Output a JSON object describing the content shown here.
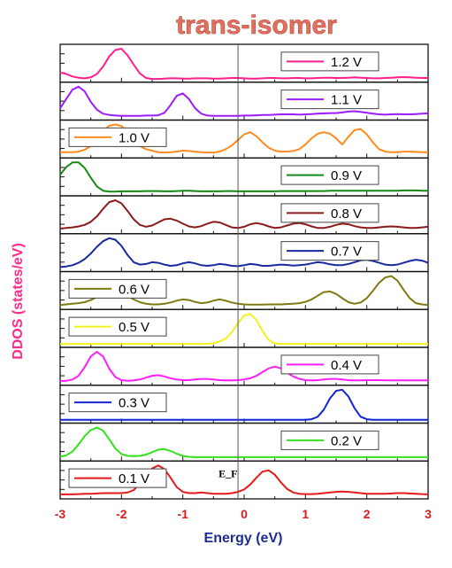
{
  "chart_data": {
    "type": "line",
    "title": "trans-isomer",
    "xlabel": "Energy (eV)",
    "ylabel": "DDOS (states/eV)",
    "xlim": [
      -3,
      3
    ],
    "xticks": [
      "-3",
      "-2",
      "-1",
      "0",
      "1",
      "2",
      "3"
    ],
    "fermi_level_label": "E_F",
    "fermi_level_x": -0.1,
    "x": [
      -3.0,
      -2.9,
      -2.8,
      -2.7,
      -2.6,
      -2.5,
      -2.4,
      -2.3,
      -2.2,
      -2.1,
      -2.0,
      -1.9,
      -1.8,
      -1.7,
      -1.6,
      -1.5,
      -1.4,
      -1.3,
      -1.2,
      -1.1,
      -1.0,
      -0.9,
      -0.8,
      -0.7,
      -0.6,
      -0.5,
      -0.4,
      -0.3,
      -0.2,
      -0.1,
      0.0,
      0.1,
      0.2,
      0.3,
      0.4,
      0.5,
      0.6,
      0.7,
      0.8,
      0.9,
      1.0,
      1.1,
      1.2,
      1.3,
      1.4,
      1.5,
      1.6,
      1.7,
      1.8,
      1.9,
      2.0,
      2.1,
      2.2,
      2.3,
      2.4,
      2.5,
      2.6,
      2.7,
      2.8,
      2.9,
      3.0
    ],
    "panels": [
      {
        "name": "1.2 V",
        "color": "#ff1f8c",
        "legend_pos": "right",
        "values": [
          0.23,
          0.18,
          0.1,
          0.06,
          0.04,
          0.07,
          0.18,
          0.42,
          0.75,
          0.96,
          1.0,
          0.78,
          0.48,
          0.2,
          0.05,
          0.02,
          0.02,
          0.03,
          0.04,
          0.04,
          0.03,
          0.03,
          0.04,
          0.04,
          0.04,
          0.03,
          0.03,
          0.04,
          0.05,
          0.05,
          0.04,
          0.03,
          0.03,
          0.04,
          0.05,
          0.05,
          0.04,
          0.04,
          0.05,
          0.05,
          0.04,
          0.04,
          0.05,
          0.06,
          0.06,
          0.05,
          0.05,
          0.06,
          0.07,
          0.06,
          0.05,
          0.04,
          0.04,
          0.05,
          0.06,
          0.07,
          0.08,
          0.07,
          0.06,
          0.05,
          0.05
        ]
      },
      {
        "name": "1.1 V",
        "color": "#9b1cff",
        "legend_pos": "right",
        "values": [
          0.3,
          0.6,
          0.9,
          1.0,
          0.85,
          0.5,
          0.25,
          0.12,
          0.08,
          0.06,
          0.05,
          0.05,
          0.05,
          0.05,
          0.06,
          0.06,
          0.07,
          0.15,
          0.4,
          0.7,
          0.78,
          0.6,
          0.3,
          0.12,
          0.06,
          0.05,
          0.05,
          0.05,
          0.05,
          0.05,
          0.06,
          0.06,
          0.07,
          0.08,
          0.08,
          0.09,
          0.1,
          0.1,
          0.1,
          0.09,
          0.1,
          0.11,
          0.12,
          0.13,
          0.14,
          0.14,
          0.16,
          0.19,
          0.2,
          0.18,
          0.15,
          0.12,
          0.1,
          0.09,
          0.1,
          0.11,
          0.1,
          0.1,
          0.11,
          0.12,
          0.13
        ]
      },
      {
        "name": "1.0 V",
        "color": "#ff8a1c",
        "legend_pos": "left",
        "values": [
          0.1,
          0.1,
          0.1,
          0.12,
          0.18,
          0.3,
          0.5,
          0.78,
          0.96,
          1.0,
          0.95,
          0.75,
          0.48,
          0.3,
          0.2,
          0.15,
          0.1,
          0.09,
          0.1,
          0.12,
          0.15,
          0.14,
          0.12,
          0.1,
          0.09,
          0.09,
          0.12,
          0.2,
          0.32,
          0.5,
          0.68,
          0.75,
          0.62,
          0.42,
          0.25,
          0.15,
          0.12,
          0.12,
          0.14,
          0.2,
          0.35,
          0.55,
          0.7,
          0.75,
          0.7,
          0.55,
          0.35,
          0.6,
          0.82,
          0.85,
          0.68,
          0.42,
          0.2,
          0.12,
          0.1,
          0.1,
          0.12,
          0.12,
          0.11,
          0.1,
          0.1
        ]
      },
      {
        "name": "0.9 V",
        "color": "#138a13",
        "legend_pos": "right",
        "values": [
          0.6,
          0.85,
          1.0,
          1.0,
          0.82,
          0.5,
          0.22,
          0.08,
          0.05,
          0.05,
          0.06,
          0.06,
          0.06,
          0.06,
          0.07,
          0.07,
          0.07,
          0.06,
          0.06,
          0.07,
          0.08,
          0.08,
          0.07,
          0.06,
          0.06,
          0.06,
          0.06,
          0.07,
          0.07,
          0.06,
          0.06,
          0.06,
          0.06,
          0.06,
          0.06,
          0.06,
          0.07,
          0.07,
          0.07,
          0.07,
          0.07,
          0.07,
          0.07,
          0.07,
          0.08,
          0.08,
          0.08,
          0.08,
          0.08,
          0.08,
          0.08,
          0.08,
          0.08,
          0.08,
          0.08,
          0.08,
          0.09,
          0.09,
          0.09,
          0.08,
          0.08
        ]
      },
      {
        "name": "0.8 V",
        "color": "#8b1a1a",
        "legend_pos": "right",
        "values": [
          0.08,
          0.1,
          0.12,
          0.15,
          0.2,
          0.3,
          0.48,
          0.72,
          0.94,
          1.0,
          0.9,
          0.65,
          0.38,
          0.2,
          0.14,
          0.18,
          0.28,
          0.38,
          0.4,
          0.34,
          0.24,
          0.15,
          0.12,
          0.16,
          0.24,
          0.3,
          0.28,
          0.2,
          0.12,
          0.1,
          0.14,
          0.22,
          0.26,
          0.22,
          0.15,
          0.1,
          0.12,
          0.18,
          0.24,
          0.26,
          0.22,
          0.15,
          0.1,
          0.1,
          0.14,
          0.2,
          0.24,
          0.22,
          0.16,
          0.12,
          0.1,
          0.1,
          0.12,
          0.14,
          0.15,
          0.14,
          0.12,
          0.1,
          0.1,
          0.12,
          0.14
        ]
      },
      {
        "name": "0.7 V",
        "color": "#1a2a9e",
        "legend_pos": "right",
        "values": [
          0.06,
          0.08,
          0.12,
          0.2,
          0.32,
          0.5,
          0.72,
          0.9,
          1.0,
          0.95,
          0.75,
          0.45,
          0.22,
          0.14,
          0.16,
          0.22,
          0.2,
          0.14,
          0.1,
          0.12,
          0.18,
          0.22,
          0.18,
          0.12,
          0.1,
          0.12,
          0.16,
          0.14,
          0.1,
          0.09,
          0.12,
          0.16,
          0.14,
          0.1,
          0.1,
          0.12,
          0.14,
          0.13,
          0.11,
          0.12,
          0.14,
          0.18,
          0.22,
          0.2,
          0.15,
          0.12,
          0.12,
          0.16,
          0.22,
          0.28,
          0.3,
          0.26,
          0.2,
          0.14,
          0.12,
          0.14,
          0.2,
          0.26,
          0.3,
          0.27,
          0.2
        ]
      },
      {
        "name": "0.6 V",
        "color": "#7f7a10",
        "legend_pos": "left",
        "values": [
          0.06,
          0.08,
          0.1,
          0.12,
          0.15,
          0.22,
          0.32,
          0.42,
          0.48,
          0.5,
          0.45,
          0.35,
          0.24,
          0.15,
          0.1,
          0.08,
          0.08,
          0.1,
          0.14,
          0.2,
          0.24,
          0.22,
          0.16,
          0.12,
          0.14,
          0.2,
          0.24,
          0.2,
          0.14,
          0.1,
          0.08,
          0.07,
          0.07,
          0.07,
          0.08,
          0.08,
          0.08,
          0.09,
          0.1,
          0.12,
          0.16,
          0.24,
          0.36,
          0.48,
          0.5,
          0.42,
          0.28,
          0.15,
          0.1,
          0.14,
          0.28,
          0.52,
          0.78,
          0.95,
          1.0,
          0.85,
          0.55,
          0.28,
          0.12,
          0.08,
          0.06
        ]
      },
      {
        "name": "0.5 V",
        "color": "#f2f21a",
        "legend_pos": "left",
        "values": [
          0.02,
          0.02,
          0.02,
          0.02,
          0.02,
          0.02,
          0.02,
          0.02,
          0.02,
          0.02,
          0.02,
          0.02,
          0.02,
          0.02,
          0.02,
          0.02,
          0.02,
          0.02,
          0.02,
          0.02,
          0.02,
          0.02,
          0.02,
          0.02,
          0.03,
          0.05,
          0.1,
          0.2,
          0.4,
          0.7,
          0.95,
          1.0,
          0.8,
          0.45,
          0.15,
          0.04,
          0.02,
          0.02,
          0.02,
          0.02,
          0.02,
          0.02,
          0.02,
          0.02,
          0.02,
          0.02,
          0.02,
          0.02,
          0.02,
          0.02,
          0.02,
          0.02,
          0.02,
          0.02,
          0.02,
          0.02,
          0.02,
          0.02,
          0.02,
          0.02,
          0.02
        ]
      },
      {
        "name": "0.4 V",
        "color": "#ff1cff",
        "legend_pos": "right",
        "values": [
          0.05,
          0.06,
          0.1,
          0.22,
          0.5,
          0.85,
          1.0,
          0.85,
          0.45,
          0.18,
          0.08,
          0.06,
          0.07,
          0.1,
          0.16,
          0.22,
          0.24,
          0.2,
          0.14,
          0.1,
          0.08,
          0.08,
          0.1,
          0.12,
          0.12,
          0.1,
          0.08,
          0.07,
          0.07,
          0.08,
          0.1,
          0.14,
          0.22,
          0.34,
          0.46,
          0.52,
          0.46,
          0.32,
          0.2,
          0.12,
          0.08,
          0.07,
          0.08,
          0.1,
          0.12,
          0.12,
          0.1,
          0.08,
          0.07,
          0.07,
          0.08,
          0.08,
          0.08,
          0.07,
          0.07,
          0.07,
          0.07,
          0.07,
          0.07,
          0.07,
          0.07
        ]
      },
      {
        "name": "0.3 V",
        "color": "#1424d6",
        "legend_pos": "left",
        "values": [
          0.02,
          0.02,
          0.02,
          0.02,
          0.02,
          0.02,
          0.02,
          0.02,
          0.02,
          0.02,
          0.02,
          0.02,
          0.02,
          0.02,
          0.02,
          0.02,
          0.02,
          0.02,
          0.02,
          0.02,
          0.02,
          0.02,
          0.02,
          0.02,
          0.02,
          0.02,
          0.02,
          0.02,
          0.02,
          0.02,
          0.02,
          0.02,
          0.02,
          0.02,
          0.02,
          0.02,
          0.02,
          0.02,
          0.02,
          0.02,
          0.02,
          0.04,
          0.12,
          0.35,
          0.72,
          0.96,
          1.0,
          0.78,
          0.4,
          0.12,
          0.04,
          0.02,
          0.02,
          0.02,
          0.02,
          0.02,
          0.02,
          0.02,
          0.02,
          0.02,
          0.02
        ]
      },
      {
        "name": "0.2 V",
        "color": "#33e21c",
        "legend_pos": "right",
        "values": [
          0.05,
          0.1,
          0.22,
          0.45,
          0.72,
          0.92,
          1.0,
          0.9,
          0.62,
          0.32,
          0.14,
          0.08,
          0.07,
          0.08,
          0.12,
          0.2,
          0.28,
          0.3,
          0.24,
          0.15,
          0.08,
          0.05,
          0.04,
          0.04,
          0.04,
          0.04,
          0.04,
          0.04,
          0.04,
          0.04,
          0.04,
          0.04,
          0.04,
          0.04,
          0.04,
          0.04,
          0.04,
          0.04,
          0.04,
          0.04,
          0.04,
          0.04,
          0.04,
          0.04,
          0.04,
          0.04,
          0.04,
          0.04,
          0.04,
          0.04,
          0.04,
          0.04,
          0.04,
          0.04,
          0.04,
          0.04,
          0.04,
          0.04,
          0.04,
          0.04,
          0.04
        ]
      },
      {
        "name": "0.1 V",
        "color": "#e61a1a",
        "legend_pos": "left",
        "values": [
          0.06,
          0.06,
          0.06,
          0.07,
          0.08,
          0.08,
          0.09,
          0.1,
          0.1,
          0.1,
          0.1,
          0.12,
          0.2,
          0.4,
          0.68,
          0.9,
          1.0,
          0.88,
          0.6,
          0.3,
          0.14,
          0.1,
          0.1,
          0.12,
          0.1,
          0.08,
          0.08,
          0.08,
          0.1,
          0.14,
          0.22,
          0.38,
          0.6,
          0.8,
          0.84,
          0.7,
          0.45,
          0.24,
          0.12,
          0.08,
          0.07,
          0.07,
          0.08,
          0.1,
          0.12,
          0.14,
          0.15,
          0.14,
          0.12,
          0.1,
          0.08,
          0.08,
          0.08,
          0.08,
          0.09,
          0.1,
          0.1,
          0.09,
          0.08,
          0.07,
          0.06
        ]
      }
    ]
  }
}
